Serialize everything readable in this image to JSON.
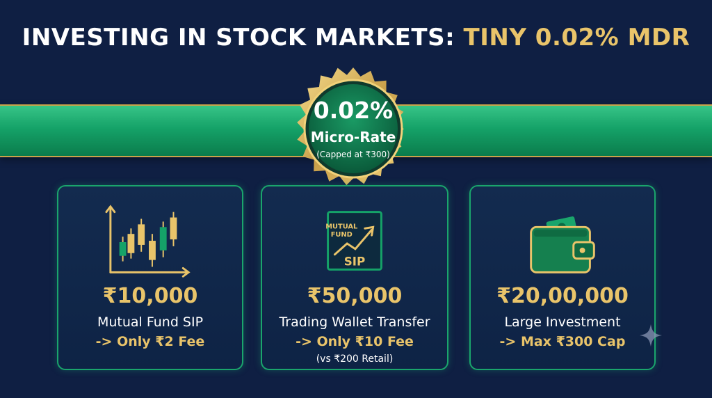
{
  "header": {
    "title_main": "INVESTING IN STOCK MARKETS:",
    "title_highlight": "TINY 0.02% MDR"
  },
  "seal": {
    "rate": "0.02%",
    "label": "Micro-Rate",
    "cap_note": "(Capped at ₹300)"
  },
  "cards": [
    {
      "icon": "candlestick-chart-icon",
      "amount": "₹10,000",
      "label": "Mutual Fund SIP",
      "fee": "-> Only ₹2 Fee"
    },
    {
      "icon": "mutual-fund-sip-icon",
      "icon_text_line1": "MUTUAL",
      "icon_text_line2": "FUND",
      "icon_text_line3": "SIP",
      "amount": "₹50,000",
      "label": "Trading Wallet Transfer",
      "fee": "-> Only ₹10 Fee",
      "note": "(vs ₹200 Retail)"
    },
    {
      "icon": "wallet-icon",
      "amount": "₹20,00,000",
      "label": "Large Investment",
      "fee": "-> Max ₹300 Cap"
    }
  ],
  "colors": {
    "background": "#0f1f43",
    "gold": "#e9c46a",
    "green": "#15a268",
    "white": "#ffffff"
  }
}
